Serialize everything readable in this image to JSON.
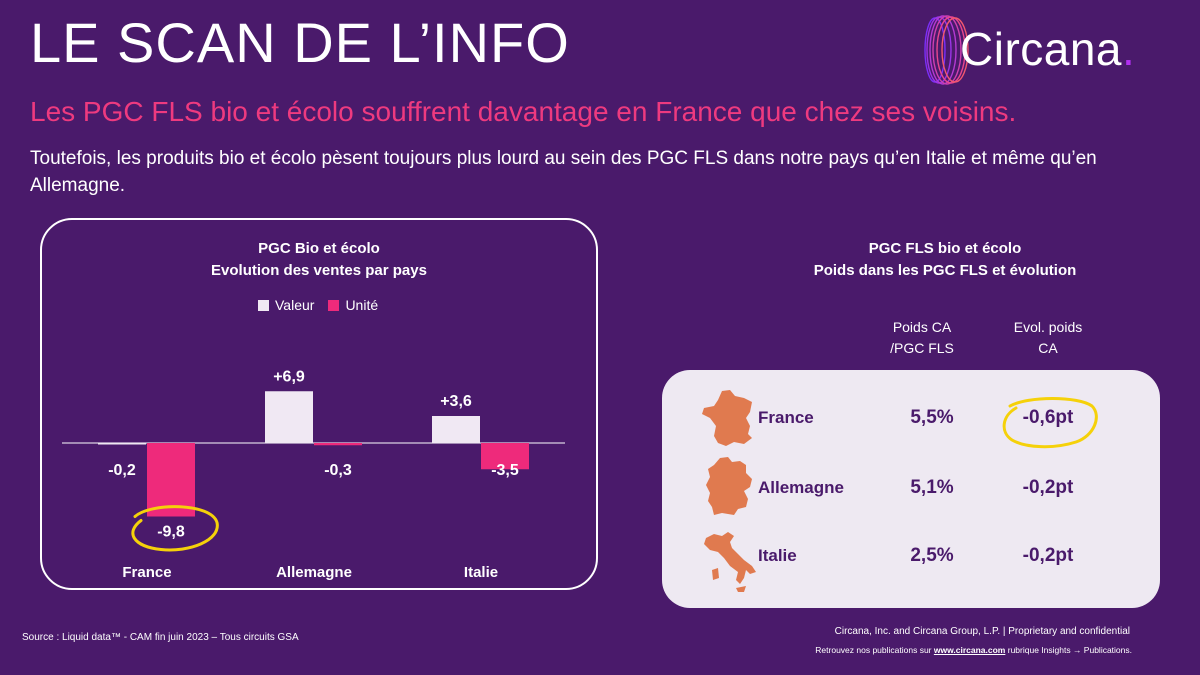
{
  "header": {
    "title": "LE SCAN DE L’INFO",
    "headline": "Les PGC FLS bio et écolo souffrent davantage en France que chez ses voisins.",
    "subtitle": "Toutefois, les produits bio et écolo pèsent toujours plus lourd au sein des PGC FLS dans notre pays qu’en Italie et même qu’en Allemagne."
  },
  "logo": {
    "word": "Circana",
    "dot": "."
  },
  "colors": {
    "background": "#4a1a6b",
    "valeur": "#f0e8f3",
    "unite": "#ee2a7b",
    "highlight": "#f5d10a",
    "map": "#e07a4f"
  },
  "chart_data": {
    "type": "bar",
    "title_line1": "PGC Bio et écolo",
    "title_line2": "Evolution  des ventes par pays",
    "categories": [
      "France",
      "Allemagne",
      "Italie"
    ],
    "series": [
      {
        "name": "Valeur",
        "values": [
          -0.2,
          6.9,
          3.6
        ],
        "labels": [
          "-0,2",
          "+6,9",
          "+3,6"
        ]
      },
      {
        "name": "Unité",
        "values": [
          -9.8,
          -0.3,
          -3.5
        ],
        "labels": [
          "-9,8",
          "-0,3",
          "-3,5"
        ]
      }
    ],
    "highlighted": "France – Unité"
  },
  "table": {
    "title_line1": "PGC FLS bio et écolo",
    "title_line2": "Poids dans les PGC FLS et évolution",
    "col_poids_line1": "Poids CA",
    "col_poids_line2": "/PGC FLS",
    "col_evol_line1": "Evol. poids",
    "col_evol_line2": "CA",
    "rows": [
      {
        "country": "France",
        "poids": "5,5%",
        "evol": "-0,6pt",
        "map_icon": "france-map-icon"
      },
      {
        "country": "Allemagne",
        "poids": "5,1%",
        "evol": "-0,2pt",
        "map_icon": "germany-map-icon"
      },
      {
        "country": "Italie",
        "poids": "2,5%",
        "evol": "-0,2pt",
        "map_icon": "italy-map-icon"
      }
    ]
  },
  "footer": {
    "source": "Source : Liquid data™ - CAM fin juin 2023  – Tous circuits GSA",
    "copyright": "Circana, Inc. and Circana Group, L.P. |  Proprietary and confidential",
    "pubs_prefix": "Retrouvez nos publications sur ",
    "pubs_url": "www.circana.com",
    "pubs_suffix": " rubrique Insights → Publications."
  }
}
